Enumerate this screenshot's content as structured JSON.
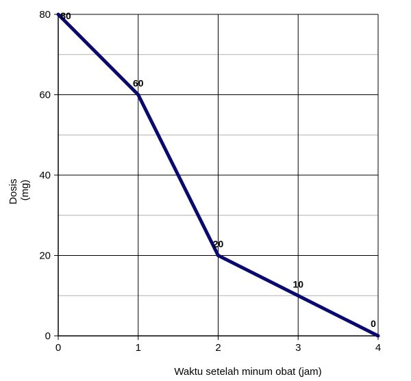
{
  "chart_data": {
    "type": "line",
    "title": "",
    "xlabel": "Waktu setelah minum obat (jam)",
    "ylabel_lines": [
      "Dosis",
      "(mg)"
    ],
    "x": [
      0,
      1,
      2,
      3,
      4
    ],
    "series": [
      {
        "values": [
          80,
          60,
          20,
          10,
          0
        ],
        "color": "#0a0a6e"
      }
    ],
    "data_labels": [
      "80",
      "60",
      "20",
      "10",
      "0"
    ],
    "xlim": [
      0,
      4
    ],
    "ylim": [
      0,
      80
    ],
    "x_ticks": [
      0,
      1,
      2,
      3,
      4
    ],
    "y_ticks": [
      0,
      20,
      40,
      60,
      80
    ],
    "x_tick_labels": [
      "0",
      "1",
      "2",
      "3",
      "4"
    ],
    "y_tick_labels": [
      "0",
      "20",
      "40",
      "60",
      "80"
    ],
    "grid": {
      "major": true,
      "minor_y": true
    },
    "colors": {
      "line": "#0a0a6e",
      "major_grid": "#000000",
      "minor_grid": "#b0b0b0"
    },
    "legend": "none"
  }
}
